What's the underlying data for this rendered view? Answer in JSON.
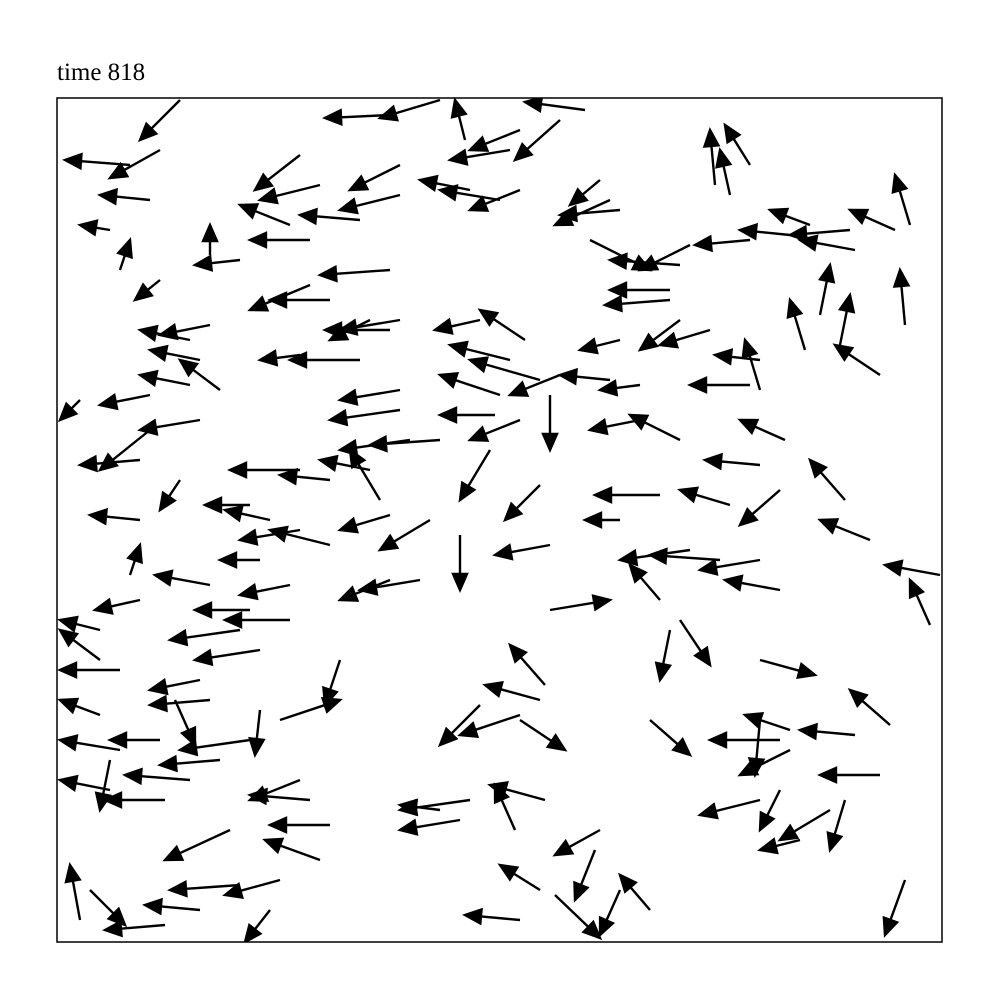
{
  "chart_data": {
    "type": "quiver",
    "title": "time 818",
    "color": "#000000",
    "xlim": [
      57,
      942
    ],
    "ylim": [
      58,
      902
    ],
    "x": [
      180,
      130,
      160,
      150,
      110,
      120,
      160,
      390,
      440,
      585,
      560,
      465,
      520,
      510,
      300,
      320,
      400,
      400,
      470,
      500,
      520,
      360,
      310,
      290,
      210,
      240,
      620,
      610,
      600,
      590,
      680,
      690,
      670,
      670,
      715,
      750,
      730,
      750,
      790,
      810,
      850,
      855,
      895,
      910,
      905,
      820,
      840,
      805,
      880,
      390,
      330,
      310,
      390,
      370,
      400,
      210,
      190,
      200,
      220,
      190,
      300,
      360,
      480,
      525,
      510,
      540,
      560,
      500,
      620,
      680,
      710,
      760,
      750,
      760,
      610,
      640,
      400,
      400,
      410,
      440,
      495,
      520,
      550,
      640,
      680,
      785,
      760,
      150,
      200,
      150,
      140,
      80,
      300,
      330,
      370,
      380,
      140,
      180,
      250,
      270,
      300,
      330,
      390,
      430,
      490,
      460,
      540,
      550,
      660,
      620,
      730,
      780,
      845,
      870,
      940,
      930,
      690,
      720,
      760,
      780,
      660,
      390,
      420,
      550,
      260,
      290,
      250,
      210,
      130,
      140,
      100,
      120,
      290,
      240,
      260,
      200,
      210,
      100,
      670,
      680,
      760,
      545,
      540,
      520,
      480,
      520,
      340,
      280,
      650,
      890,
      790,
      780,
      855,
      760,
      790,
      880,
      260,
      250,
      175,
      220,
      190,
      300,
      310,
      160,
      120,
      110,
      165,
      110,
      470,
      460,
      545,
      515,
      600,
      760,
      780,
      800,
      830,
      845,
      330,
      320,
      230,
      280,
      240,
      200,
      165,
      80,
      90,
      595,
      650,
      540,
      520,
      620,
      555,
      905,
      270,
      100,
      440
    ],
    "y": [
      900,
      835,
      850,
      800,
      770,
      730,
      720,
      885,
      900,
      890,
      880,
      860,
      870,
      850,
      845,
      815,
      835,
      805,
      810,
      800,
      810,
      780,
      760,
      775,
      745,
      740,
      790,
      800,
      820,
      760,
      735,
      755,
      710,
      700,
      815,
      835,
      805,
      760,
      765,
      775,
      770,
      750,
      770,
      775,
      675,
      685,
      655,
      650,
      625,
      730,
      700,
      715,
      670,
      680,
      680,
      675,
      660,
      640,
      610,
      615,
      645,
      640,
      680,
      660,
      640,
      620,
      625,
      605,
      660,
      680,
      670,
      640,
      615,
      610,
      620,
      615,
      610,
      590,
      560,
      560,
      585,
      580,
      605,
      580,
      560,
      560,
      535,
      605,
      580,
      570,
      540,
      600,
      530,
      520,
      530,
      500,
      480,
      520,
      495,
      480,
      470,
      455,
      485,
      480,
      550,
      465,
      515,
      455,
      505,
      480,
      495,
      510,
      500,
      460,
      425,
      375,
      450,
      440,
      440,
      410,
      400,
      420,
      420,
      390,
      440,
      415,
      390,
      415,
      425,
      400,
      370,
      330,
      380,
      370,
      350,
      320,
      300,
      285,
      370,
      380,
      340,
      315,
      300,
      285,
      295,
      280,
      340,
      280,
      280,
      275,
      270,
      260,
      265,
      280,
      250,
      225,
      290,
      260,
      300,
      240,
      220,
      220,
      200,
      260,
      250,
      210,
      200,
      240,
      200,
      180,
      200,
      170,
      170,
      200,
      210,
      160,
      190,
      200,
      175,
      140,
      170,
      120,
      115,
      90,
      75,
      80,
      110,
      150,
      90,
      110,
      80,
      110,
      105,
      120,
      90,
      340,
      190
    ],
    "u": [
      -40,
      -65,
      -50,
      -50,
      -30,
      10,
      -25,
      -65,
      -60,
      -60,
      -45,
      -10,
      -50,
      -60,
      -45,
      -60,
      -50,
      -60,
      -50,
      -60,
      -50,
      -60,
      -60,
      -50,
      0,
      -45,
      -60,
      -55,
      -30,
      60,
      -70,
      -50,
      -60,
      -65,
      -5,
      -25,
      -10,
      -55,
      -50,
      -40,
      -60,
      -55,
      -45,
      -15,
      -5,
      10,
      10,
      -15,
      -45,
      -70,
      -60,
      -60,
      -65,
      -40,
      -60,
      -50,
      -50,
      -50,
      -40,
      -50,
      -40,
      -70,
      -45,
      -45,
      -60,
      -70,
      -50,
      -60,
      -40,
      -40,
      -50,
      -45,
      -60,
      -15,
      -50,
      -40,
      -60,
      -70,
      -70,
      -70,
      -55,
      -50,
      0,
      -50,
      -50,
      -45,
      -55,
      -50,
      -60,
      -50,
      -60,
      -20,
      -70,
      -50,
      -50,
      -30,
      -50,
      -20,
      -45,
      -45,
      -60,
      -60,
      -50,
      -50,
      -30,
      0,
      -35,
      -55,
      -65,
      -35,
      -50,
      -40,
      -35,
      -50,
      -55,
      -20,
      -70,
      -70,
      -60,
      -55,
      -30,
      -50,
      -60,
      60,
      -40,
      -50,
      -55,
      -55,
      10,
      -45,
      -40,
      -60,
      -65,
      -70,
      -65,
      -50,
      -60,
      -40,
      -10,
      30,
      55,
      -35,
      -55,
      -60,
      -40,
      45,
      -15,
      60,
      40,
      -40,
      -45,
      -70,
      -55,
      -5,
      -50,
      -60,
      -5,
      -70,
      20,
      -60,
      -65,
      -50,
      -60,
      -50,
      -60,
      -50,
      -60,
      -10,
      -70,
      -60,
      -55,
      -20,
      -45,
      -60,
      -20,
      -40,
      -50,
      -15,
      -60,
      -55,
      -65,
      -55,
      -70,
      -55,
      -60,
      -10,
      35,
      -20,
      -30,
      -40,
      -55,
      -20,
      45,
      -20,
      -25,
      -40,
      -40
    ],
    "v": [
      -40,
      5,
      -28,
      5,
      5,
      30,
      -20,
      -3,
      -18,
      8,
      -40,
      40,
      -20,
      -10,
      -35,
      -15,
      -25,
      -15,
      10,
      10,
      -20,
      5,
      0,
      20,
      30,
      -5,
      -5,
      -25,
      -25,
      -30,
      5,
      -25,
      0,
      -5,
      55,
      40,
      45,
      -5,
      5,
      15,
      -5,
      10,
      20,
      50,
      55,
      50,
      50,
      50,
      30,
      -5,
      0,
      -25,
      0,
      -20,
      -10,
      -10,
      10,
      10,
      30,
      10,
      -5,
      0,
      -10,
      30,
      15,
      20,
      -20,
      20,
      -10,
      -30,
      -15,
      5,
      0,
      50,
      5,
      -5,
      -10,
      -10,
      -10,
      -5,
      0,
      -20,
      -55,
      -10,
      25,
      20,
      5,
      -10,
      -10,
      -40,
      -5,
      -20,
      0,
      5,
      10,
      50,
      5,
      -30,
      0,
      10,
      -10,
      15,
      -15,
      -30,
      -50,
      -55,
      -35,
      -10,
      0,
      0,
      15,
      -35,
      40,
      20,
      10,
      45,
      -10,
      5,
      -10,
      10,
      35,
      -20,
      -10,
      10,
      0,
      -10,
      0,
      10,
      30,
      -10,
      10,
      0,
      0,
      -10,
      -10,
      -10,
      -5,
      15,
      -50,
      -45,
      -15,
      40,
      15,
      -20,
      -40,
      -30,
      -45,
      20,
      -35,
      35,
      15,
      0,
      5,
      -55,
      -25,
      0,
      -45,
      -10,
      -45,
      -5,
      5,
      -20,
      5,
      0,
      10,
      10,
      0,
      -50,
      -10,
      -10,
      15,
      45,
      -25,
      -15,
      -40,
      -10,
      -30,
      -50,
      0,
      20,
      -30,
      -15,
      -5,
      5,
      -5,
      55,
      -35,
      -50,
      35,
      25,
      5,
      -45,
      -43,
      -55,
      -32,
      30,
      5
    ]
  }
}
